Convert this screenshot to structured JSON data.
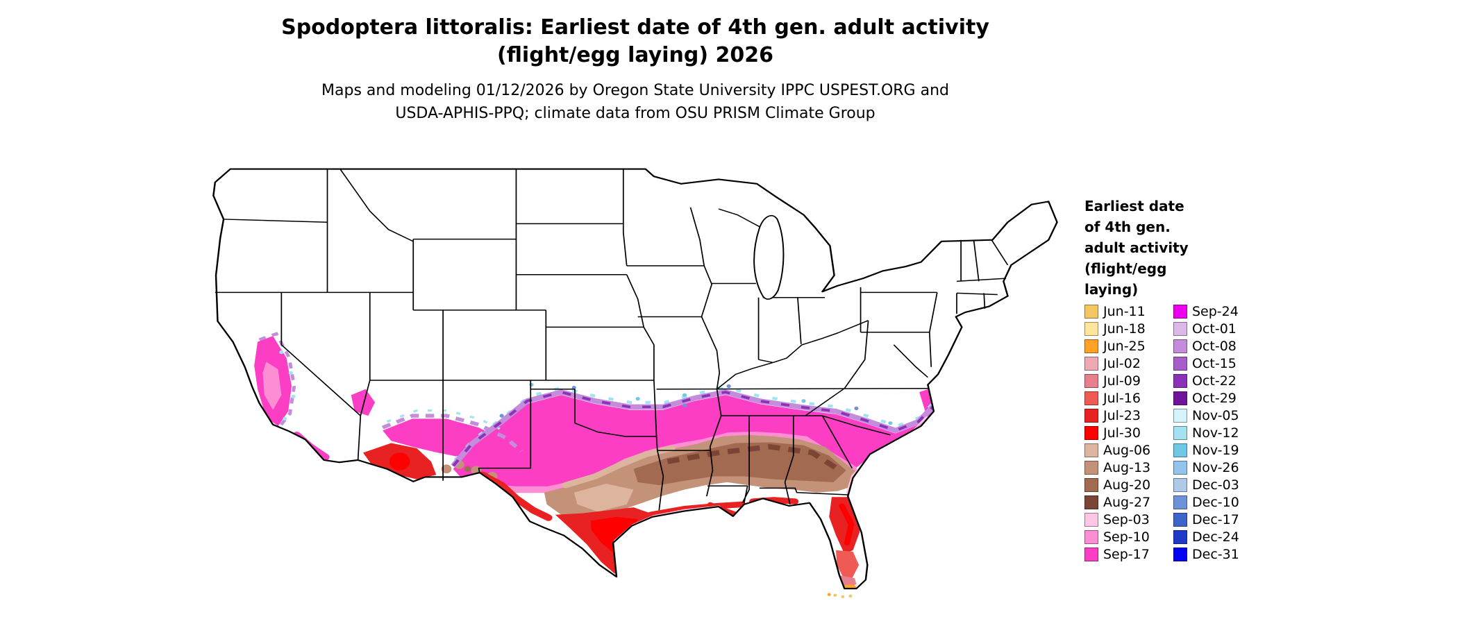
{
  "header": {
    "title_line1": "Spodoptera littoralis: Earliest date of 4th gen. adult activity",
    "title_line2": "(flight/egg laying) 2026",
    "subtitle_line1": "Maps and modeling 01/12/2026 by Oregon State University IPPC USPEST.ORG and",
    "subtitle_line2": "USDA-APHIS-PPQ; climate data from OSU PRISM Climate Group"
  },
  "map": {
    "type": "choropleth",
    "region_depicted": "contiguous United States",
    "variable": "Earliest date of 4th gen. adult activity (flight/egg laying)"
  },
  "colors": {
    "jun11": "#F4C661",
    "jun18": "#FFE59C",
    "jun25": "#FFA226",
    "jul02": "#EDAAB4",
    "jul09": "#E77F8C",
    "jul16": "#F05A54",
    "jul23": "#E82222",
    "jul30": "#FE0000",
    "aug06": "#DDB49E",
    "aug13": "#C49279",
    "aug20": "#A26A51",
    "aug27": "#7B4435",
    "sep03": "#FDC7E4",
    "sep10": "#FC8ED3",
    "sep17": "#FB3EC3",
    "sep24": "#EE00EE",
    "oct01": "#DCB8E8",
    "oct08": "#C38DDB",
    "oct15": "#A75ECB",
    "oct22": "#8C32B8",
    "oct29": "#70129C",
    "nov05": "#D4F3FA",
    "nov12": "#A4E2F2",
    "nov19": "#6FC8E6",
    "nov26": "#92C3EA",
    "dec03": "#AECAE8",
    "dec10": "#6E92D8",
    "dec17": "#3E66CA",
    "dec24": "#2038C8",
    "dec31": "#0404F2"
  },
  "legend": {
    "title_lines": [
      "Earliest date",
      "of 4th gen.",
      "adult activity",
      "(flight/egg",
      "laying)"
    ],
    "columns": [
      {
        "entries": [
          {
            "label": "Jun-11",
            "color_key": "jun11"
          },
          {
            "label": "Jun-18",
            "color_key": "jun18"
          },
          {
            "label": "Jun-25",
            "color_key": "jun25"
          },
          {
            "label": "Jul-02",
            "color_key": "jul02"
          },
          {
            "label": "Jul-09",
            "color_key": "jul09"
          },
          {
            "label": "Jul-16",
            "color_key": "jul16"
          },
          {
            "label": "Jul-23",
            "color_key": "jul23"
          },
          {
            "label": "Jul-30",
            "color_key": "jul30"
          },
          {
            "label": "Aug-06",
            "color_key": "aug06"
          },
          {
            "label": "Aug-13",
            "color_key": "aug13"
          },
          {
            "label": "Aug-20",
            "color_key": "aug20"
          },
          {
            "label": "Aug-27",
            "color_key": "aug27"
          },
          {
            "label": "Sep-03",
            "color_key": "sep03"
          },
          {
            "label": "Sep-10",
            "color_key": "sep10"
          },
          {
            "label": "Sep-17",
            "color_key": "sep17"
          }
        ]
      },
      {
        "entries": [
          {
            "label": "Sep-24",
            "color_key": "sep24"
          },
          {
            "label": "Oct-01",
            "color_key": "oct01"
          },
          {
            "label": "Oct-08",
            "color_key": "oct08"
          },
          {
            "label": "Oct-15",
            "color_key": "oct15"
          },
          {
            "label": "Oct-22",
            "color_key": "oct22"
          },
          {
            "label": "Oct-29",
            "color_key": "oct29"
          },
          {
            "label": "Nov-05",
            "color_key": "nov05"
          },
          {
            "label": "Nov-12",
            "color_key": "nov12"
          },
          {
            "label": "Nov-19",
            "color_key": "nov19"
          },
          {
            "label": "Nov-26",
            "color_key": "nov26"
          },
          {
            "label": "Dec-03",
            "color_key": "dec03"
          },
          {
            "label": "Dec-10",
            "color_key": "dec10"
          },
          {
            "label": "Dec-17",
            "color_key": "dec17"
          },
          {
            "label": "Dec-24",
            "color_key": "dec24"
          },
          {
            "label": "Dec-31",
            "color_key": "dec31"
          }
        ]
      }
    ]
  }
}
